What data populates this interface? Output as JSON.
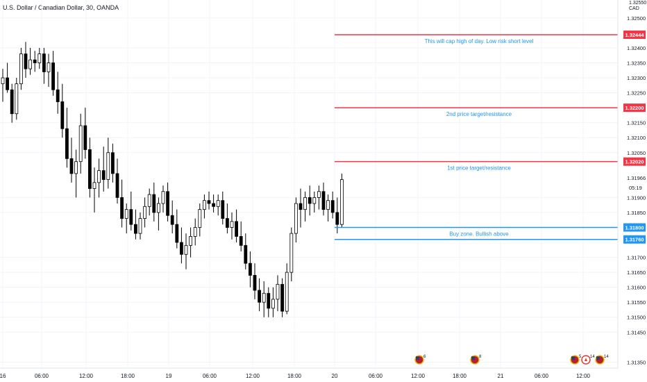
{
  "header": {
    "symbol_title": "U.S. Dollar / Canadian Dollar, 30, OANDA"
  },
  "price_axis": {
    "currency": "CAD",
    "top_partial_label": "1.32550",
    "ticks": [
      "1.32500",
      "1.32400",
      "1.32350",
      "1.32300",
      "1.32250",
      "1.32150",
      "1.32100",
      "1.32050",
      "1.31900",
      "1.31850",
      "1.31700",
      "1.31650",
      "1.31600",
      "1.31550",
      "1.31500",
      "1.31450",
      "1.31350"
    ],
    "last_price": "1.31966",
    "countdown": "05:19"
  },
  "time_axis": {
    "labels": [
      {
        "text": "16",
        "bold": false
      },
      {
        "text": "06:00",
        "bold": false
      },
      {
        "text": "12:00",
        "bold": false
      },
      {
        "text": "18:00",
        "bold": false
      },
      {
        "text": "19",
        "bold": false
      },
      {
        "text": "06:00",
        "bold": false
      },
      {
        "text": "12:00",
        "bold": false
      },
      {
        "text": "18:00",
        "bold": false
      },
      {
        "text": "20",
        "bold": false
      },
      {
        "text": "06:00",
        "bold": false
      },
      {
        "text": "12:00",
        "bold": false
      },
      {
        "text": "18:00",
        "bold": false
      },
      {
        "text": "21",
        "bold": false
      },
      {
        "text": "06:00",
        "bold": false
      },
      {
        "text": "12:00",
        "bold": false
      }
    ]
  },
  "levels": [
    {
      "price": "1.32444",
      "color": "#f23645",
      "note": "This will cap high of day. Low risk short level"
    },
    {
      "price": "1.32200",
      "color": "#f23645",
      "note": "2nd price target/resistance"
    },
    {
      "price": "1.32020",
      "color": "#f23645",
      "note": "1st price target/resistance"
    },
    {
      "price": "1.31800",
      "color": "#2196f3",
      "note": "Buy zone. Bullish above"
    },
    {
      "price": "1.31760",
      "color": "#2196f3",
      "note": ""
    }
  ],
  "events": [
    {
      "flag": "us-flag-icon",
      "count": "6"
    },
    {
      "flag": "us-flag-icon",
      "count": "8"
    },
    {
      "flag": "us-flag-icon",
      "count": "5"
    },
    {
      "flag": "ca-flag-icon",
      "count": "14"
    },
    {
      "flag": "us-flag-icon",
      "count": "14"
    }
  ],
  "colors": {
    "bull": "#ffffff",
    "bear": "#000000",
    "wick": "#000000",
    "grid": "#f0f3fa",
    "axis_text": "#131722"
  },
  "chart_data": {
    "type": "candlestick",
    "timeframe": "30",
    "series": [
      {
        "name": "U.S. Dollar / Canadian Dollar",
        "ohlc": [
          [
            1.3228,
            1.3233,
            1.3222,
            1.323
          ],
          [
            1.323,
            1.3235,
            1.3225,
            1.3226
          ],
          [
            1.3226,
            1.3228,
            1.3215,
            1.3218
          ],
          [
            1.3218,
            1.323,
            1.3216,
            1.3228
          ],
          [
            1.3228,
            1.324,
            1.3226,
            1.3238
          ],
          [
            1.3238,
            1.3242,
            1.323,
            1.3233
          ],
          [
            1.3233,
            1.324,
            1.3231,
            1.3236
          ],
          [
            1.3236,
            1.3239,
            1.3232,
            1.3235
          ],
          [
            1.3235,
            1.324,
            1.3233,
            1.3238
          ],
          [
            1.3238,
            1.324,
            1.3228,
            1.3232
          ],
          [
            1.3232,
            1.3238,
            1.3227,
            1.3235
          ],
          [
            1.3235,
            1.3239,
            1.3224,
            1.3226
          ],
          [
            1.3226,
            1.3232,
            1.3218,
            1.3222
          ],
          [
            1.3222,
            1.3228,
            1.321,
            1.3213
          ],
          [
            1.3213,
            1.322,
            1.32,
            1.3203
          ],
          [
            1.3203,
            1.321,
            1.3195,
            1.3198
          ],
          [
            1.3198,
            1.3206,
            1.319,
            1.3202
          ],
          [
            1.3202,
            1.3218,
            1.3198,
            1.3214
          ],
          [
            1.3214,
            1.322,
            1.3203,
            1.3206
          ],
          [
            1.3206,
            1.321,
            1.319,
            1.3193
          ],
          [
            1.3193,
            1.32,
            1.3185,
            1.3195
          ],
          [
            1.3195,
            1.3203,
            1.319,
            1.3199
          ],
          [
            1.3199,
            1.3207,
            1.3192,
            1.3196
          ],
          [
            1.3196,
            1.321,
            1.3193,
            1.3205
          ],
          [
            1.3205,
            1.3208,
            1.3195,
            1.3198
          ],
          [
            1.3198,
            1.3203,
            1.3188,
            1.319
          ],
          [
            1.319,
            1.3196,
            1.318,
            1.3183
          ],
          [
            1.3183,
            1.3188,
            1.3178,
            1.3186
          ],
          [
            1.3186,
            1.3192,
            1.3179,
            1.3181
          ],
          [
            1.3181,
            1.3186,
            1.3176,
            1.3178
          ],
          [
            1.3178,
            1.3185,
            1.3176,
            1.3183
          ],
          [
            1.3183,
            1.319,
            1.318,
            1.3187
          ],
          [
            1.3187,
            1.3193,
            1.3184,
            1.3191
          ],
          [
            1.3191,
            1.3195,
            1.3182,
            1.3185
          ],
          [
            1.3185,
            1.319,
            1.3179,
            1.3188
          ],
          [
            1.3188,
            1.3194,
            1.3185,
            1.3192
          ],
          [
            1.3192,
            1.3195,
            1.3182,
            1.3184
          ],
          [
            1.3184,
            1.3189,
            1.3178,
            1.3181
          ],
          [
            1.3181,
            1.3186,
            1.3173,
            1.3175
          ],
          [
            1.3175,
            1.318,
            1.3168,
            1.3171
          ],
          [
            1.3171,
            1.3178,
            1.3166,
            1.3174
          ],
          [
            1.3174,
            1.318,
            1.317,
            1.3177
          ],
          [
            1.3177,
            1.3183,
            1.3174,
            1.318
          ],
          [
            1.318,
            1.3188,
            1.3177,
            1.3186
          ],
          [
            1.3186,
            1.3191,
            1.3183,
            1.3189
          ],
          [
            1.3189,
            1.3192,
            1.3186,
            1.3188
          ],
          [
            1.3188,
            1.3191,
            1.3185,
            1.3187
          ],
          [
            1.3187,
            1.3191,
            1.3184,
            1.3189
          ],
          [
            1.3189,
            1.3192,
            1.3181,
            1.3183
          ],
          [
            1.3183,
            1.3188,
            1.3178,
            1.318
          ],
          [
            1.318,
            1.3185,
            1.3176,
            1.3182
          ],
          [
            1.3182,
            1.3186,
            1.3175,
            1.3177
          ],
          [
            1.3177,
            1.3182,
            1.3172,
            1.3174
          ],
          [
            1.3174,
            1.3178,
            1.3166,
            1.3168
          ],
          [
            1.3168,
            1.3172,
            1.316,
            1.3164
          ],
          [
            1.3164,
            1.3168,
            1.3156,
            1.3159
          ],
          [
            1.3159,
            1.3163,
            1.3152,
            1.3155
          ],
          [
            1.3155,
            1.3162,
            1.315,
            1.3158
          ],
          [
            1.3158,
            1.316,
            1.315,
            1.3153
          ],
          [
            1.3153,
            1.316,
            1.315,
            1.3156
          ],
          [
            1.3156,
            1.3164,
            1.3152,
            1.3161
          ],
          [
            1.3161,
            1.3163,
            1.315,
            1.3152
          ],
          [
            1.3152,
            1.3168,
            1.3151,
            1.3165
          ],
          [
            1.3165,
            1.318,
            1.3162,
            1.3178
          ],
          [
            1.3178,
            1.319,
            1.3175,
            1.3188
          ],
          [
            1.3188,
            1.3193,
            1.318,
            1.3186
          ],
          [
            1.3186,
            1.3192,
            1.3182,
            1.319
          ],
          [
            1.319,
            1.3194,
            1.3184,
            1.3188
          ],
          [
            1.3188,
            1.3192,
            1.3185,
            1.319
          ],
          [
            1.319,
            1.3194,
            1.3186,
            1.3192
          ],
          [
            1.3192,
            1.3195,
            1.3184,
            1.3186
          ],
          [
            1.3186,
            1.3191,
            1.3182,
            1.3189
          ],
          [
            1.3189,
            1.3192,
            1.3183,
            1.3185
          ],
          [
            1.3185,
            1.319,
            1.3178,
            1.3181
          ],
          [
            1.3181,
            1.3198,
            1.318,
            1.3196
          ]
        ]
      }
    ],
    "ylim": [
      1.3133,
      1.3256
    ],
    "grid": true
  }
}
